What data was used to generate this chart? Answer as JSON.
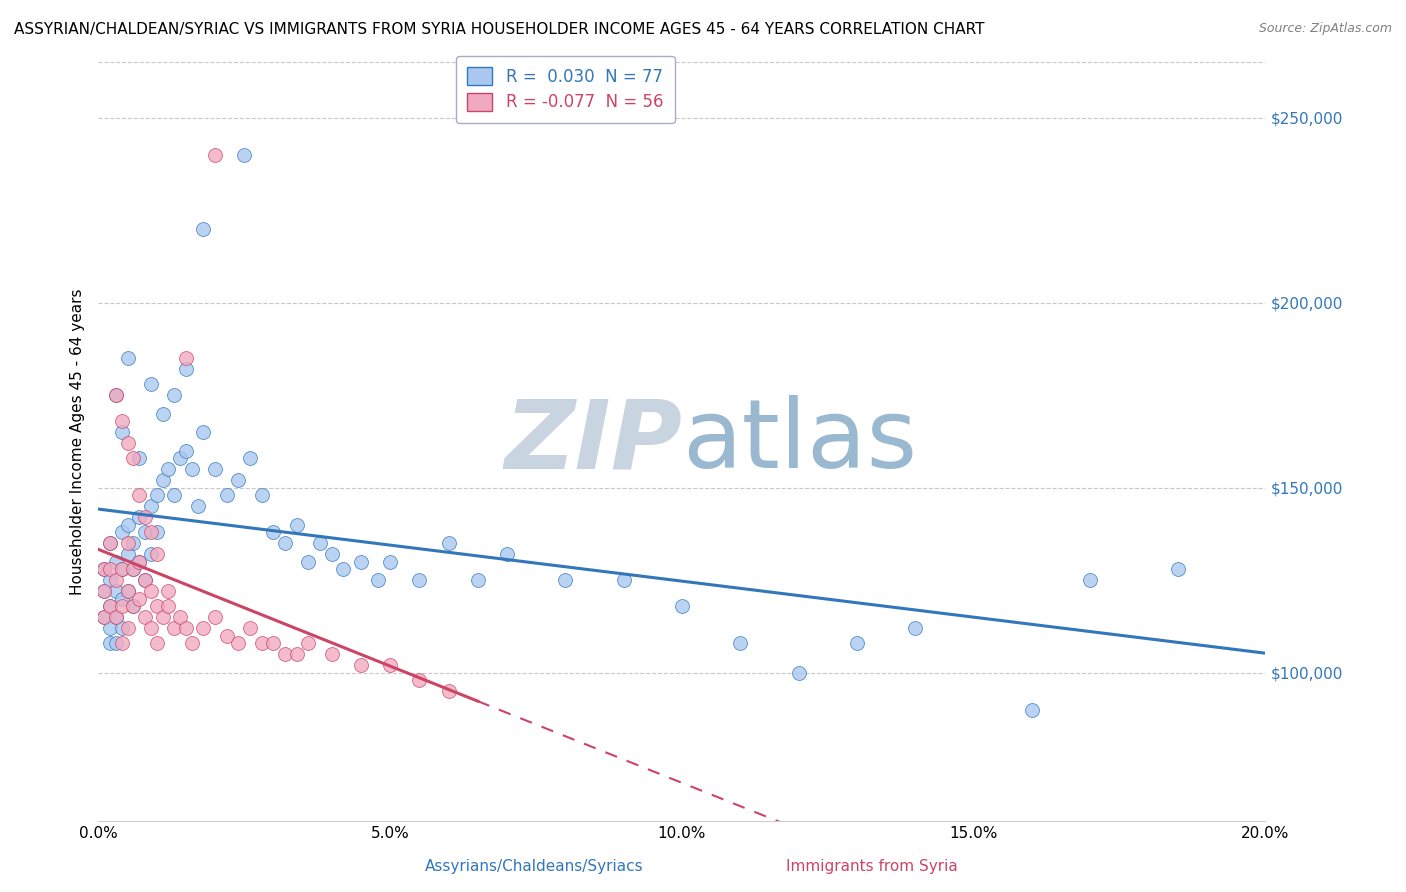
{
  "title": "ASSYRIAN/CHALDEAN/SYRIAC VS IMMIGRANTS FROM SYRIA HOUSEHOLDER INCOME AGES 45 - 64 YEARS CORRELATION CHART",
  "source": "Source: ZipAtlas.com",
  "ylabel": "Householder Income Ages 45 - 64 years",
  "watermark_zip": "ZIP",
  "watermark_atlas": "atlas",
  "blue_R": 0.03,
  "blue_N": 77,
  "pink_R": -0.077,
  "pink_N": 56,
  "xlim": [
    0.0,
    0.2
  ],
  "ylim": [
    60000,
    265000
  ],
  "yticks": [
    100000,
    150000,
    200000,
    250000
  ],
  "ytick_labels": [
    "$100,000",
    "$150,000",
    "$200,000",
    "$250,000"
  ],
  "xticks": [
    0.0,
    0.05,
    0.1,
    0.15,
    0.2
  ],
  "xtick_labels": [
    "0.0%",
    "5.0%",
    "10.0%",
    "15.0%",
    "20.0%"
  ],
  "blue_scatter_x": [
    0.001,
    0.001,
    0.001,
    0.002,
    0.002,
    0.002,
    0.002,
    0.002,
    0.003,
    0.003,
    0.003,
    0.003,
    0.004,
    0.004,
    0.004,
    0.004,
    0.005,
    0.005,
    0.005,
    0.006,
    0.006,
    0.006,
    0.007,
    0.007,
    0.008,
    0.008,
    0.009,
    0.009,
    0.01,
    0.01,
    0.011,
    0.012,
    0.013,
    0.014,
    0.015,
    0.016,
    0.017,
    0.018,
    0.02,
    0.022,
    0.024,
    0.026,
    0.028,
    0.03,
    0.032,
    0.034,
    0.036,
    0.038,
    0.04,
    0.042,
    0.045,
    0.048,
    0.05,
    0.055,
    0.06,
    0.065,
    0.07,
    0.08,
    0.09,
    0.1,
    0.11,
    0.12,
    0.13,
    0.14,
    0.16,
    0.17,
    0.185,
    0.003,
    0.004,
    0.005,
    0.007,
    0.009,
    0.011,
    0.013,
    0.015,
    0.018,
    0.025
  ],
  "blue_scatter_y": [
    128000,
    122000,
    115000,
    135000,
    125000,
    118000,
    112000,
    108000,
    130000,
    122000,
    115000,
    108000,
    138000,
    128000,
    120000,
    112000,
    140000,
    132000,
    122000,
    135000,
    128000,
    118000,
    142000,
    130000,
    138000,
    125000,
    145000,
    132000,
    148000,
    138000,
    152000,
    155000,
    148000,
    158000,
    160000,
    155000,
    145000,
    165000,
    155000,
    148000,
    152000,
    158000,
    148000,
    138000,
    135000,
    140000,
    130000,
    135000,
    132000,
    128000,
    130000,
    125000,
    130000,
    125000,
    135000,
    125000,
    132000,
    125000,
    125000,
    118000,
    108000,
    100000,
    108000,
    112000,
    90000,
    125000,
    128000,
    175000,
    165000,
    185000,
    158000,
    178000,
    170000,
    175000,
    182000,
    220000,
    240000
  ],
  "pink_scatter_x": [
    0.001,
    0.001,
    0.001,
    0.002,
    0.002,
    0.002,
    0.003,
    0.003,
    0.004,
    0.004,
    0.004,
    0.005,
    0.005,
    0.005,
    0.006,
    0.006,
    0.007,
    0.007,
    0.008,
    0.008,
    0.009,
    0.009,
    0.01,
    0.01,
    0.011,
    0.012,
    0.013,
    0.014,
    0.015,
    0.016,
    0.018,
    0.02,
    0.022,
    0.024,
    0.026,
    0.028,
    0.03,
    0.032,
    0.034,
    0.036,
    0.04,
    0.045,
    0.05,
    0.055,
    0.06,
    0.003,
    0.004,
    0.005,
    0.006,
    0.007,
    0.008,
    0.009,
    0.01,
    0.012,
    0.015,
    0.02
  ],
  "pink_scatter_y": [
    128000,
    122000,
    115000,
    135000,
    128000,
    118000,
    125000,
    115000,
    128000,
    118000,
    108000,
    135000,
    122000,
    112000,
    128000,
    118000,
    130000,
    120000,
    125000,
    115000,
    122000,
    112000,
    118000,
    108000,
    115000,
    118000,
    112000,
    115000,
    112000,
    108000,
    112000,
    115000,
    110000,
    108000,
    112000,
    108000,
    108000,
    105000,
    105000,
    108000,
    105000,
    102000,
    102000,
    98000,
    95000,
    175000,
    168000,
    162000,
    158000,
    148000,
    142000,
    138000,
    132000,
    122000,
    185000,
    240000
  ],
  "blue_color": "#aac8f0",
  "pink_color": "#f0aac0",
  "blue_line_color": "#3377bb",
  "pink_line_color": "#cc4466",
  "background_color": "#ffffff",
  "grid_color": "#c8c8c8",
  "legend_blue_label": "R =  0.030  N = 77",
  "legend_pink_label": "R = -0.077  N = 56",
  "legend_blue_text_color": "#3377bb",
  "legend_pink_text_color": "#cc4466",
  "title_fontsize": 11,
  "axis_label_fontsize": 11,
  "tick_fontsize": 11,
  "source_fontsize": 9,
  "watermark_color_zip": "#c8d4e0",
  "watermark_color_atlas": "#9ab8d0",
  "watermark_fontsize": 70,
  "xlabel_bottom": "Assyrians/Chaldeans/Syriacs",
  "xlabel_bottom2": "Immigrants from Syria",
  "dot_size": 100,
  "pink_line_solid_end": 0.065,
  "pink_line_dash_start": 0.065
}
